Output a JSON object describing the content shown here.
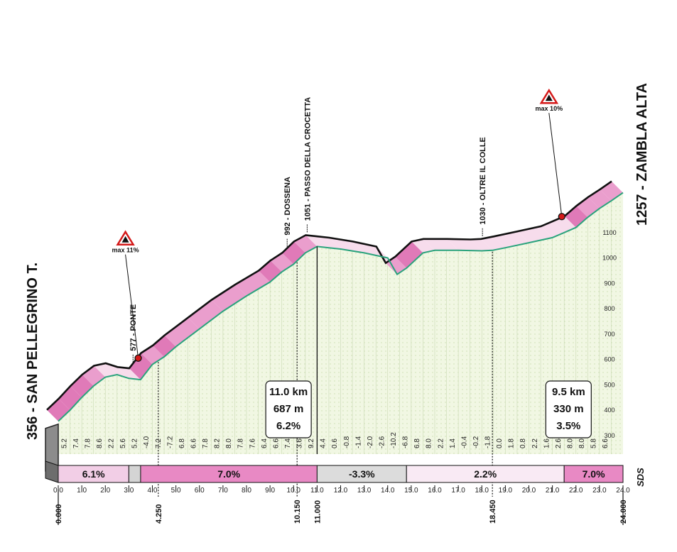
{
  "chart_data": {
    "type": "area",
    "title": "",
    "xlabel": "",
    "ylabel": "",
    "xlim": [
      0,
      24
    ],
    "ylim": [
      200,
      1300
    ],
    "y_ticks": [
      "300",
      "400",
      "500",
      "600",
      "700",
      "800",
      "900",
      "1000",
      "1100"
    ],
    "x_ticks": [
      "0.0",
      "1.0",
      "2.0",
      "3.0",
      "4.0",
      "5.0",
      "6.0",
      "7.0",
      "8.0",
      "9.0",
      "10.0",
      "11.0",
      "12.0",
      "13.0",
      "14.0",
      "15.0",
      "16.0",
      "17.0",
      "18.0",
      "19.0",
      "20.0",
      "21.0",
      "22.0",
      "23.0",
      "24.0"
    ],
    "series": [
      {
        "x": [
          0,
          0.5,
          1.0,
          1.5,
          2.0,
          2.5,
          3.0,
          3.5,
          4.0,
          4.5,
          5.0,
          6.0,
          7.0,
          8.0,
          9.0,
          9.5,
          10.0,
          10.5,
          11.0,
          11.5,
          12.0,
          13.0,
          14.0,
          14.4,
          14.8,
          15.5,
          16.0,
          17.0,
          18.0,
          18.45,
          19.0,
          20.0,
          21.0,
          21.5,
          22.0,
          22.5,
          23.0,
          23.5,
          24.0
        ],
        "values": [
          356,
          400,
          450,
          495,
          530,
          540,
          525,
          520,
          580,
          610,
          650,
          720,
          790,
          850,
          905,
          945,
          975,
          1020,
          1045,
          1040,
          1035,
          1020,
          1000,
          935,
          960,
          1020,
          1030,
          1030,
          1028,
          1030,
          1040,
          1060,
          1080,
          1100,
          1120,
          1160,
          1195,
          1225,
          1257
        ]
      }
    ],
    "start_label": "356 - SAN PELLEGRINO T.",
    "finish_label": "1257 - ZAMBLA ALTA",
    "waypoints": [
      {
        "km": 3.6,
        "label": "577 - PONTE"
      },
      {
        "km": 10.15,
        "label": "992 - DOSSENA"
      },
      {
        "km": 11.0,
        "label": "1051 - PASSO DELLA CROCETTA"
      },
      {
        "km": 18.45,
        "label": "1030 - OLTRE IL COLLE"
      }
    ],
    "max_grades": [
      {
        "km": 3.7,
        "elev": 577,
        "label": "max 11%"
      },
      {
        "km": 21.7,
        "elev": 1135,
        "label": "max 10%"
      }
    ],
    "climb_boxes": [
      {
        "km": 10.6,
        "lines": [
          "11.0 km",
          "687 m",
          "6.2%"
        ]
      },
      {
        "km": 22.5,
        "lines": [
          "9.5 km",
          "330 m",
          "3.5%"
        ]
      }
    ],
    "segments": [
      {
        "from": 0,
        "to": 3.0,
        "label": "6.1%",
        "color": "#f2cee6"
      },
      {
        "from": 3.0,
        "to": 3.5,
        "label": "",
        "color": "#d4d4d4"
      },
      {
        "from": 3.5,
        "to": 11.0,
        "label": "7.0%",
        "color": "#e889c4"
      },
      {
        "from": 11.0,
        "to": 14.8,
        "label": "-3.3%",
        "color": "#dcdcdc"
      },
      {
        "from": 14.8,
        "to": 21.5,
        "label": "2.2%",
        "color": "#f9eaf4"
      },
      {
        "from": 21.5,
        "to": 24.0,
        "label": "7.0%",
        "color": "#e889c4"
      }
    ],
    "gradients_by_half_km": [
      "5.2",
      "7.4",
      "7.8",
      "8.6",
      "2.2",
      "5.6",
      "5.2",
      "-4.0",
      "7.2",
      "-7.2",
      "6.8",
      "6.6",
      "7.8",
      "8.2",
      "8.0",
      "7.8",
      "7.6",
      "6.4",
      "6.6",
      "7.4",
      "3.6",
      "9.2",
      "4.4",
      "0.6",
      "-0.8",
      "-1.4",
      "-2.0",
      "-2.6",
      "-10.2",
      "-6.8",
      "6.8",
      "8.0",
      "2.2",
      "1.4",
      "-0.4",
      "-0.2",
      "-1.8",
      "0.0",
      "1.8",
      "0.8",
      "2.2",
      "1.6",
      "2.6",
      "8.0",
      "8.0",
      "5.8",
      "6.6"
    ],
    "distance_markers": [
      {
        "km": 0,
        "label": "0.000"
      },
      {
        "km": 4.25,
        "label": "4.250"
      },
      {
        "km": 10.15,
        "label": "10.150"
      },
      {
        "km": 11.0,
        "label": "11.000"
      },
      {
        "km": 18.45,
        "label": "18.450"
      },
      {
        "km": 24.0,
        "label": "24.000"
      }
    ],
    "logo": "SDS",
    "colors": {
      "terrain": "#eef5dc",
      "ground_line": "#2aa37c",
      "pink_steep": "#e07ab8",
      "pink_mid": "#ea9ecd",
      "pink_light": "#f7dcec",
      "accent_red": "#d41a1a"
    }
  }
}
